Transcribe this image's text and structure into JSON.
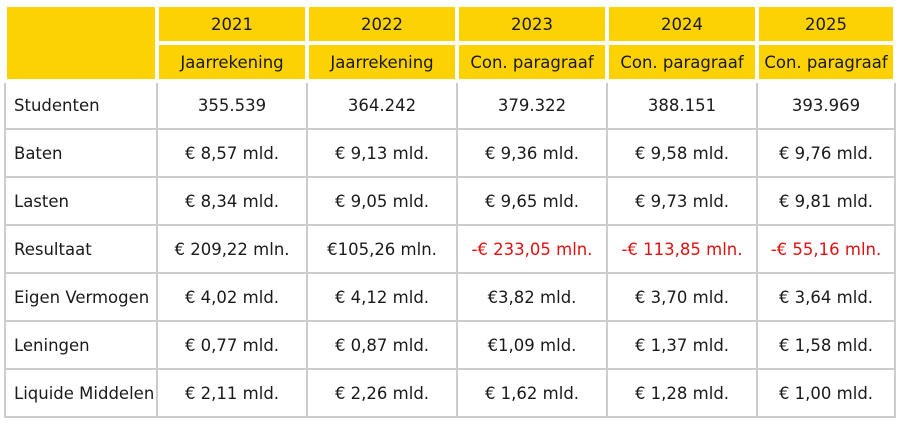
{
  "colors": {
    "header_bg": "#FCD205",
    "grid": "#CCCCCC",
    "negative": "#E01111",
    "text": "#1A1A1A",
    "separator": "#FFFFFF"
  },
  "header": {
    "corner": "",
    "years": [
      "2021",
      "2022",
      "2023",
      "2024",
      "2025"
    ],
    "subtitles": [
      "Jaarrekening",
      "Jaarrekening",
      "Con. paragraaf",
      "Con. paragraaf",
      "Con. paragraaf"
    ]
  },
  "rows": [
    {
      "label": "Studenten",
      "values": [
        "355.539",
        "364.242",
        "379.322",
        "388.151",
        "393.969"
      ]
    },
    {
      "label": "Baten",
      "values": [
        "€ 8,57 mld.",
        "€ 9,13 mld.",
        "€ 9,36 mld.",
        "€ 9,58 mld.",
        "€ 9,76 mld."
      ]
    },
    {
      "label": "Lasten",
      "values": [
        "€ 8,34 mld.",
        "€ 9,05 mld.",
        "€ 9,65 mld.",
        "€ 9,73 mld.",
        "€ 9,81 mld."
      ]
    },
    {
      "label": "Resultaat",
      "values": [
        "€ 209,22 mln.",
        "€105,26 mln.",
        "-€ 233,05 mln.",
        "-€ 113,85 mln.",
        "-€ 55,16 mln."
      ]
    },
    {
      "label": "Eigen Vermogen",
      "values": [
        "€ 4,02 mld.",
        "€ 4,12 mld.",
        "€3,82 mld.",
        "€ 3,70 mld.",
        "€ 3,64 mld."
      ]
    },
    {
      "label": "Leningen",
      "values": [
        "€ 0,77 mld.",
        "€ 0,87 mld.",
        "€1,09 mld.",
        "€ 1,37 mld.",
        "€ 1,58 mld."
      ]
    },
    {
      "label": "Liquide Middelen",
      "values": [
        "€ 2,11 mld.",
        "€ 2,26 mld.",
        "€ 1,62 mld.",
        "€ 1,28 mld.",
        "€ 1,00 mld."
      ]
    }
  ],
  "chart_data": {
    "type": "table",
    "title": "",
    "columns": [
      "",
      "2021",
      "2022",
      "2023",
      "2024",
      "2025"
    ],
    "column_subheaders": [
      "",
      "Jaarrekening",
      "Jaarrekening",
      "Con. paragraaf",
      "Con. paragraaf",
      "Con. paragraaf"
    ],
    "rows": [
      [
        "Studenten",
        "355.539",
        "364.242",
        "379.322",
        "388.151",
        "393.969"
      ],
      [
        "Baten",
        "€ 8,57 mld.",
        "€ 9,13 mld.",
        "€ 9,36 mld.",
        "€ 9,58 mld.",
        "€ 9,76 mld."
      ],
      [
        "Lasten",
        "€ 8,34 mld.",
        "€ 9,05 mld.",
        "€ 9,65 mld.",
        "€ 9,73 mld.",
        "€ 9,81 mld."
      ],
      [
        "Resultaat",
        "€ 209,22 mln.",
        "€105,26 mln.",
        "-€ 233,05 mln.",
        "-€ 113,85 mln.",
        "-€ 55,16 mln."
      ],
      [
        "Eigen Vermogen",
        "€ 4,02 mld.",
        "€ 4,12 mld.",
        "€3,82 mld.",
        "€ 3,70 mld.",
        "€ 3,64 mld."
      ],
      [
        "Leningen",
        "€ 0,77 mld.",
        "€ 0,87 mld.",
        "€1,09 mld.",
        "€ 1,37 mld.",
        "€ 1,58 mld."
      ],
      [
        "Liquide Middelen",
        "€ 2,11 mld.",
        "€ 2,26 mld.",
        "€ 1,62 mld.",
        "€ 1,28 mld.",
        "€ 1,00 mld."
      ]
    ],
    "negative_cells_red": true,
    "grid": true,
    "legend_position": "none"
  }
}
